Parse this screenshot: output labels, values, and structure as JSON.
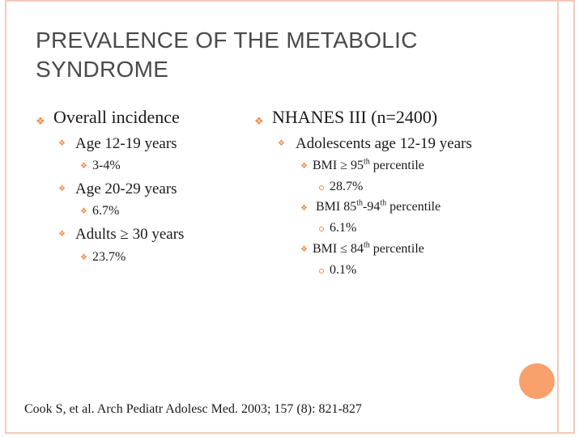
{
  "title": "PREVALENCE OF THE METABOLIC SYNDROME",
  "left": {
    "heading": "Overall incidence",
    "groups": [
      {
        "label": "Age 12-19 years",
        "value": "3-4%"
      },
      {
        "label": "Age 20-29 years",
        "value": "6.7%"
      },
      {
        "label": "Adults ≥ 30 years",
        "value": "23.7%"
      }
    ]
  },
  "right": {
    "heading": "NHANES III (n=2400)",
    "subheading": "Adolescents age 12-19 years",
    "items": [
      {
        "pre": "BMI ≥ 95",
        "sup": "th",
        "post": " percentile",
        "value": "28.7%"
      },
      {
        "pre": "BMI 85",
        "sup": "th",
        "mid": "-94",
        "sup2": "th",
        "post": " percentile",
        "value": "6.1%"
      },
      {
        "pre": "BMI ≤ 84",
        "sup": "th",
        "post": " percentile",
        "value": "0.1%"
      }
    ]
  },
  "footer": "Cook S, et al.  Arch Pediatr Adolesc Med.  2003; 157 (8): 821-827",
  "colors": {
    "accent": "#f08a48",
    "frame": "#f3c9b7",
    "circle": "#f7a06b",
    "title": "#4a4a4a"
  }
}
